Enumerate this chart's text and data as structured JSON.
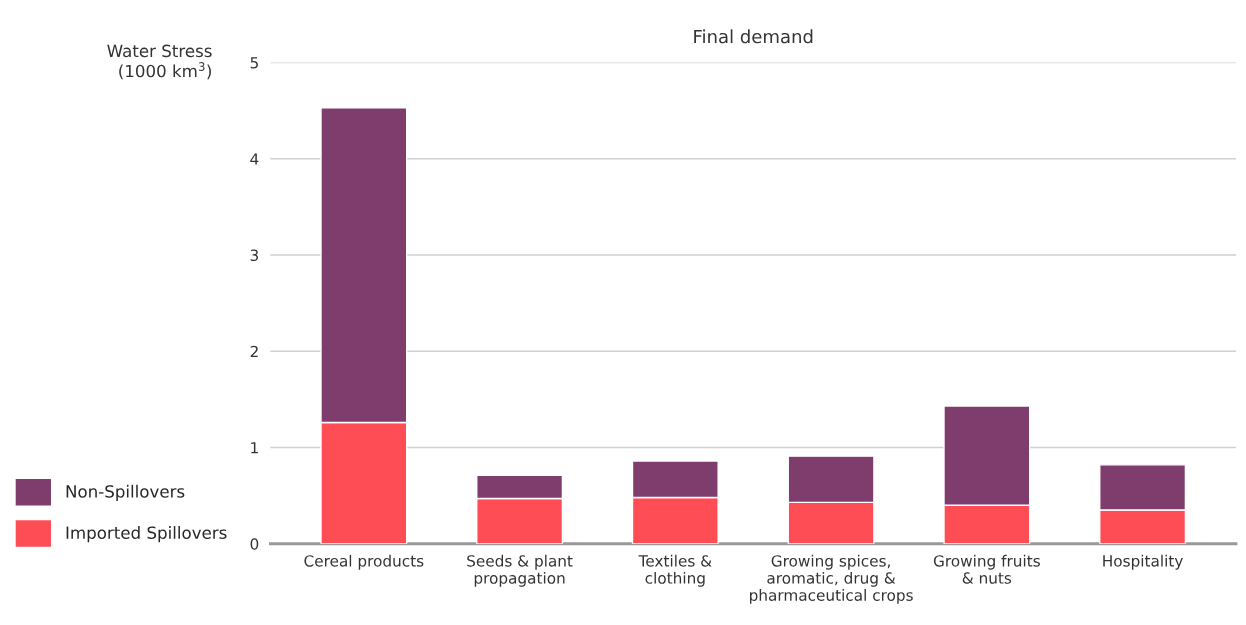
{
  "chart_data": {
    "type": "bar",
    "title": "Final demand",
    "ylabel": "Water Stress\n(1000 km$^{3}$)",
    "categories": [
      "Cereal products",
      "Seeds & plant\npropagation",
      "Textiles &\nclothing",
      "Growing spices,\naromatic, drug &\npharmaceutical crops",
      "Growing fruits\n& nuts",
      "Hospitality"
    ],
    "stacked": true,
    "series": [
      {
        "name": "Imported Spillovers",
        "color": "#ff4d55",
        "values": [
          1.26,
          0.47,
          0.48,
          0.43,
          0.4,
          0.35
        ]
      },
      {
        "name": "Non-Spillovers",
        "color": "#7f3d6e",
        "values": [
          3.27,
          0.24,
          0.38,
          0.48,
          1.03,
          0.47
        ]
      }
    ],
    "ylim": [
      0,
      5
    ],
    "yticks": [
      0,
      1,
      2,
      3,
      4,
      5
    ],
    "grid": "y",
    "legend": "bottom left"
  }
}
